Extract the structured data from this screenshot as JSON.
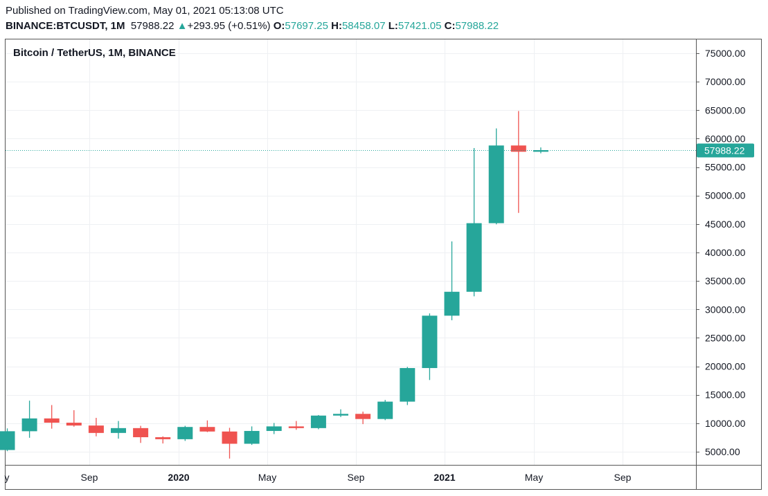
{
  "header": {
    "published": "Published on TradingView.com, May 01, 2021 05:13:08 UTC",
    "symbol": "BINANCE:BTCUSDT, 1M",
    "last": "57988.22",
    "change_arrow": "▲",
    "change": "+293.95 (+0.51%)",
    "open_label": "O:",
    "open": "57697.25",
    "high_label": "H:",
    "high": "58458.07",
    "low_label": "L:",
    "low": "57421.05",
    "close_label": "C:",
    "close": "57988.22"
  },
  "colors": {
    "up": "#26a69a",
    "down": "#ef5350",
    "grid": "#eef0f3",
    "price_line": "#26a69a"
  },
  "chart_data": {
    "type": "candlestick",
    "title": "Bitcoin / TetherUS, 1M, BINANCE",
    "ylim": [
      2500,
      77500
    ],
    "y_ticks": [
      "75000.00",
      "70000.00",
      "65000.00",
      "60000.00",
      "55000.00",
      "50000.00",
      "45000.00",
      "40000.00",
      "35000.00",
      "30000.00",
      "25000.00",
      "20000.00",
      "15000.00",
      "10000.00",
      "5000.00"
    ],
    "x_ticks": [
      {
        "label": "y",
        "bold": false
      },
      {
        "label": "Sep",
        "bold": false
      },
      {
        "label": "2020",
        "bold": true
      },
      {
        "label": "May",
        "bold": false
      },
      {
        "label": "Sep",
        "bold": false
      },
      {
        "label": "2021",
        "bold": true
      },
      {
        "label": "May",
        "bold": false
      },
      {
        "label": "Sep",
        "bold": false
      }
    ],
    "last_price_label": "57988.22",
    "last_price": 57988.22,
    "candles": [
      {
        "date": "2019-05",
        "open": 5300,
        "high": 9100,
        "low": 5100,
        "close": 8600
      },
      {
        "date": "2019-06",
        "open": 8600,
        "high": 13970,
        "low": 7450,
        "close": 10850
      },
      {
        "date": "2019-07",
        "open": 10850,
        "high": 13200,
        "low": 9050,
        "close": 10100
      },
      {
        "date": "2019-08",
        "open": 10100,
        "high": 12300,
        "low": 9400,
        "close": 9600
      },
      {
        "date": "2019-09",
        "open": 9600,
        "high": 10950,
        "low": 7700,
        "close": 8300
      },
      {
        "date": "2019-10",
        "open": 8300,
        "high": 10400,
        "low": 7300,
        "close": 9150
      },
      {
        "date": "2019-11",
        "open": 9150,
        "high": 9550,
        "low": 6550,
        "close": 7550
      },
      {
        "date": "2019-12",
        "open": 7550,
        "high": 7700,
        "low": 6450,
        "close": 7200
      },
      {
        "date": "2020-01",
        "open": 7200,
        "high": 9550,
        "low": 6900,
        "close": 9350
      },
      {
        "date": "2020-02",
        "open": 9350,
        "high": 10500,
        "low": 8450,
        "close": 8550
      },
      {
        "date": "2020-03",
        "open": 8550,
        "high": 9200,
        "low": 3800,
        "close": 6400
      },
      {
        "date": "2020-04",
        "open": 6400,
        "high": 9450,
        "low": 6200,
        "close": 8650
      },
      {
        "date": "2020-05",
        "open": 8650,
        "high": 10050,
        "low": 8100,
        "close": 9450
      },
      {
        "date": "2020-06",
        "open": 9450,
        "high": 10400,
        "low": 8850,
        "close": 9150
      },
      {
        "date": "2020-07",
        "open": 9150,
        "high": 11450,
        "low": 8950,
        "close": 11350
      },
      {
        "date": "2020-08",
        "open": 11350,
        "high": 12450,
        "low": 11100,
        "close": 11650
      },
      {
        "date": "2020-09",
        "open": 11650,
        "high": 12050,
        "low": 9850,
        "close": 10750
      },
      {
        "date": "2020-10",
        "open": 10750,
        "high": 14100,
        "low": 10550,
        "close": 13800
      },
      {
        "date": "2020-11",
        "open": 13800,
        "high": 19900,
        "low": 13200,
        "close": 19700
      },
      {
        "date": "2020-12",
        "open": 19700,
        "high": 29300,
        "low": 17600,
        "close": 28900
      },
      {
        "date": "2021-01",
        "open": 28900,
        "high": 41950,
        "low": 28100,
        "close": 33100
      },
      {
        "date": "2021-02",
        "open": 33100,
        "high": 58350,
        "low": 32300,
        "close": 45150
      },
      {
        "date": "2021-03",
        "open": 45150,
        "high": 61800,
        "low": 44950,
        "close": 58800
      },
      {
        "date": "2021-04",
        "open": 58800,
        "high": 64850,
        "low": 46950,
        "close": 57700
      },
      {
        "date": "2021-05",
        "open": 57697.25,
        "high": 58458.07,
        "low": 57421.05,
        "close": 57988.22
      }
    ]
  }
}
